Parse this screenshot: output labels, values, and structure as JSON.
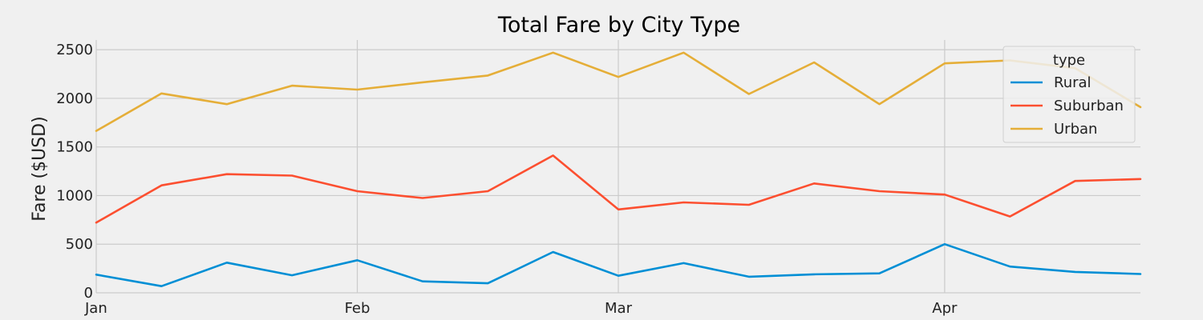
{
  "chart_data": {
    "type": "line",
    "title": "Total Fare by City Type",
    "xlabel": "",
    "ylabel": "Fare ($USD)",
    "x": [
      "2019-01-06",
      "2019-01-13",
      "2019-01-20",
      "2019-01-27",
      "2019-02-03",
      "2019-02-10",
      "2019-02-17",
      "2019-02-24",
      "2019-03-03",
      "2019-03-10",
      "2019-03-17",
      "2019-03-24",
      "2019-03-31",
      "2019-04-07",
      "2019-04-14",
      "2019-04-21",
      "2019-04-28"
    ],
    "x_ticks": [
      {
        "date": "2019-01-06",
        "label": "Jan"
      },
      {
        "date": "2019-02-03",
        "label": "Feb"
      },
      {
        "date": "2019-03-03",
        "label": "Mar"
      },
      {
        "date": "2019-04-07",
        "label": "Apr"
      }
    ],
    "xlim": [
      "2019-01-06",
      "2019-04-28"
    ],
    "ylim": [
      0,
      2600
    ],
    "y_ticks": [
      0,
      500,
      1000,
      1500,
      2000,
      2500
    ],
    "grid": true,
    "legend": {
      "title": "type",
      "placement": "top-right"
    },
    "series": [
      {
        "name": "Rural",
        "color": "#008fd5",
        "values": [
          187,
          68,
          310,
          180,
          335,
          118,
          98,
          420,
          175,
          305,
          165,
          190,
          200,
          500,
          270,
          215,
          193
        ]
      },
      {
        "name": "Suburban",
        "color": "#fc4f30",
        "values": [
          722,
          1105,
          1220,
          1205,
          1045,
          975,
          1045,
          1412,
          857,
          930,
          905,
          1125,
          1045,
          1010,
          785,
          1150,
          1170
        ]
      },
      {
        "name": "Urban",
        "color": "#e5ae38",
        "values": [
          1665,
          2050,
          1940,
          2130,
          2090,
          2165,
          2235,
          2470,
          2220,
          2470,
          2045,
          2370,
          1940,
          2360,
          2390,
          2310,
          1910
        ]
      }
    ]
  }
}
